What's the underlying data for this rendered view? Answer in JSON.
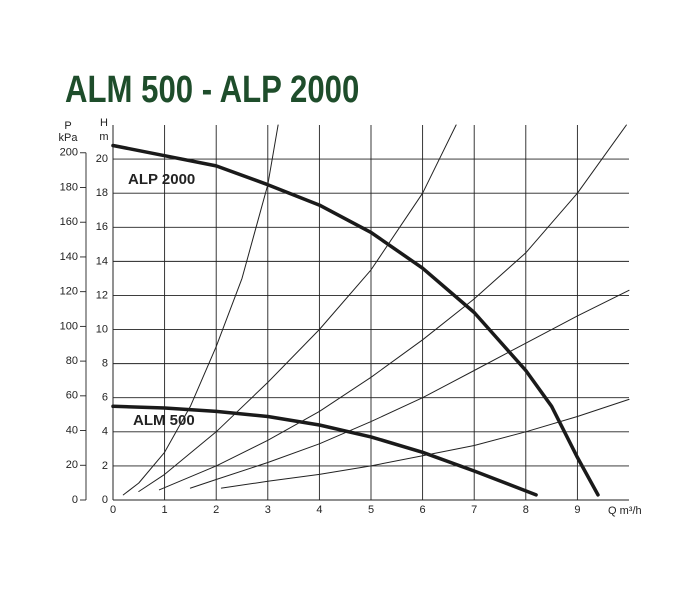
{
  "chart_data": {
    "type": "line",
    "title": "ALM 500 - ALP 2000",
    "xlabel": "Q m³/h",
    "ylabel_symbol": "H",
    "ylabel_unit": "m",
    "y2label_symbol": "P",
    "y2label_unit": "kPa",
    "xlim": [
      0,
      10
    ],
    "xticks": [
      0,
      1,
      2,
      3,
      4,
      5,
      6,
      7,
      8,
      9
    ],
    "ylim": [
      0,
      22
    ],
    "yticks": [
      0,
      2,
      4,
      6,
      8,
      10,
      12,
      14,
      16,
      18,
      20
    ],
    "y2lim": [
      0,
      216
    ],
    "y2ticks": [
      0,
      20,
      40,
      60,
      80,
      100,
      120,
      140,
      160,
      180,
      200
    ],
    "grid": true,
    "series": [
      {
        "name": "ALP 2000",
        "color": "#1a1a1a",
        "line_width": 3.5,
        "x": [
          0,
          1,
          2,
          3,
          4,
          5,
          6,
          7,
          8,
          8.5,
          9,
          9.4
        ],
        "values": [
          20.8,
          20.2,
          19.6,
          18.5,
          17.3,
          15.7,
          13.6,
          11,
          7.6,
          5.5,
          2.5,
          0.3
        ]
      },
      {
        "name": "ALM 500",
        "color": "#1a1a1a",
        "line_width": 3.5,
        "x": [
          0,
          1,
          2,
          3,
          4,
          5,
          6,
          7,
          8.2
        ],
        "values": [
          5.5,
          5.4,
          5.2,
          4.9,
          4.4,
          3.7,
          2.8,
          1.7,
          0.3
        ]
      },
      {
        "color": "#222",
        "line_width": 1,
        "x": [
          0.2,
          0.5,
          1,
          1.5,
          2,
          2.5,
          3,
          3.2
        ],
        "values": [
          0.3,
          1,
          2.8,
          5.5,
          9,
          13,
          18.5,
          22
        ]
      },
      {
        "color": "#222",
        "line_width": 1,
        "x": [
          0.5,
          1,
          2,
          3,
          4,
          5,
          6,
          6.65
        ],
        "values": [
          0.5,
          1.5,
          4,
          6.9,
          10,
          13.5,
          18,
          22
        ]
      },
      {
        "color": "#222",
        "line_width": 1,
        "x": [
          0.9,
          2,
          3,
          4,
          5,
          6,
          7,
          8,
          9,
          9.95
        ],
        "values": [
          0.6,
          2,
          3.5,
          5.2,
          7.2,
          9.4,
          11.8,
          14.5,
          18,
          22
        ]
      },
      {
        "color": "#222",
        "line_width": 1,
        "x": [
          1.5,
          2,
          3,
          4,
          5,
          6,
          7,
          8,
          9,
          10
        ],
        "values": [
          0.7,
          1.2,
          2.2,
          3.3,
          4.6,
          6,
          7.6,
          9.2,
          10.8,
          12.3
        ]
      },
      {
        "color": "#222",
        "line_width": 1,
        "x": [
          2.1,
          3,
          4,
          5,
          6,
          7,
          8,
          9,
          10
        ],
        "values": [
          0.7,
          1.1,
          1.5,
          2,
          2.6,
          3.2,
          4,
          4.9,
          5.9
        ]
      }
    ]
  }
}
